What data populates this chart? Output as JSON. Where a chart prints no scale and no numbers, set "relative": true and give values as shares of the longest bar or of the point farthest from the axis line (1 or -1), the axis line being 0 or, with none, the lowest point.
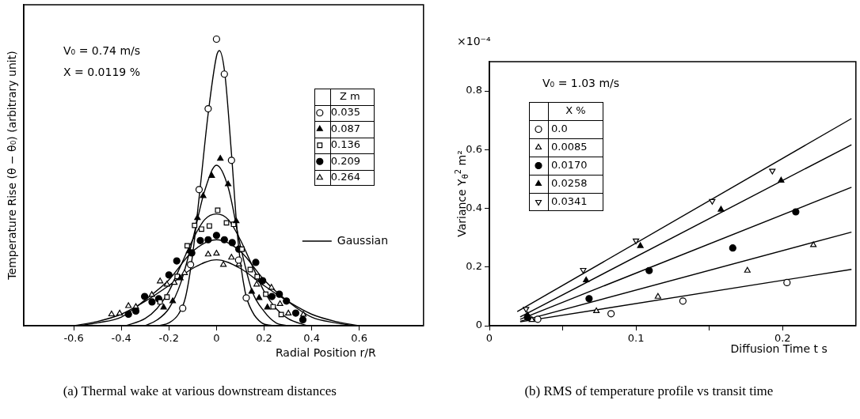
{
  "chart_data": [
    {
      "type": "scatter",
      "title": "(a) Thermal wake at various downstream distances",
      "xlabel": "Radial Position r/R",
      "ylabel": "Temperature Rise (θ − θ₀) (arbitrary unit)",
      "legend_title": "Z m",
      "legend": "right",
      "relative": true,
      "xlim": [
        -0.81,
        0.87
      ],
      "xticks": [
        -0.6,
        -0.4,
        -0.2,
        0,
        0.2,
        0.4,
        0.6
      ],
      "annotations": [
        "V₀ = 0.74 m/s",
        "X = 0.0119 %"
      ],
      "series": [
        {
          "name": "0.035",
          "color": "#ffffff",
          "marker": "circle",
          "x": [
            0,
            0.033,
            -0.035,
            0.063,
            -0.073,
            -0.109,
            0.093,
            0.125,
            -0.142
          ],
          "values": [
            1.0,
            0.878,
            0.757,
            0.577,
            0.475,
            0.213,
            0.229,
            0.097,
            0.061
          ]
        },
        {
          "name": "0.087",
          "color": "#000000",
          "marker": "triangle",
          "x": [
            0.016,
            -0.02,
            0.049,
            -0.056,
            -0.08,
            0.083,
            -0.115,
            -0.152,
            -0.184,
            -0.222,
            0.148,
            0.179,
            0.214
          ],
          "values": [
            0.583,
            0.523,
            0.494,
            0.453,
            0.376,
            0.365,
            0.26,
            0.166,
            0.086,
            0.064,
            0.119,
            0.097,
            0.064
          ]
        },
        {
          "name": "0.136",
          "color": "#ffffff",
          "marker": "square",
          "x": [
            0.005,
            -0.092,
            -0.063,
            -0.03,
            0.042,
            0.072,
            -0.123,
            0.107,
            -0.165,
            0.142,
            0.171,
            -0.208,
            -0.237,
            0.207,
            0.238,
            0.272
          ],
          "values": [
            0.403,
            0.35,
            0.337,
            0.348,
            0.359,
            0.354,
            0.279,
            0.267,
            0.172,
            0.196,
            0.171,
            0.1,
            0.083,
            0.11,
            0.066,
            0.039
          ]
        },
        {
          "name": "0.209",
          "color": "#000000",
          "marker": "circle",
          "x": [
            0,
            -0.068,
            -0.035,
            0.033,
            0.066,
            0.094,
            -0.104,
            -0.167,
            0.165,
            -0.2,
            0.194,
            0.233,
            0.264,
            0.294,
            -0.302,
            -0.271,
            -0.243,
            -0.339,
            -0.37,
            0.333,
            0.363
          ],
          "values": [
            0.315,
            0.297,
            0.3,
            0.3,
            0.29,
            0.267,
            0.254,
            0.226,
            0.221,
            0.177,
            0.157,
            0.102,
            0.11,
            0.086,
            0.102,
            0.083,
            0.094,
            0.051,
            0.04,
            0.044,
            0.021
          ]
        },
        {
          "name": "0.264",
          "color": "#ffffff",
          "marker": "triangle",
          "x": [
            -0.035,
            0,
            0.063,
            0.029,
            -0.272,
            -0.237,
            -0.208,
            -0.177,
            -0.134,
            0.094,
            0.169,
            0.231,
            0.267,
            0.302,
            0.365,
            -0.37,
            -0.339,
            -0.407,
            -0.441
          ],
          "values": [
            0.249,
            0.252,
            0.238,
            0.213,
            0.108,
            0.155,
            0.144,
            0.15,
            0.184,
            0.214,
            0.144,
            0.133,
            0.076,
            0.043,
            0.039,
            0.069,
            0.066,
            0.043,
            0.04
          ]
        },
        {
          "type": "line",
          "name": "Gaussian",
          "color": "#000000",
          "marker": "none",
          "x": [
            -0.24,
            -0.2,
            -0.16,
            -0.13,
            -0.1,
            -0.07,
            -0.035,
            0,
            0.012,
            0.035,
            0.063,
            0.09,
            0.12,
            0.15,
            0.19,
            0.235
          ],
          "values": [
            0,
            0.01,
            0.04,
            0.1,
            0.25,
            0.47,
            0.74,
            0.94,
            0.96,
            0.88,
            0.6,
            0.3,
            0.12,
            0.05,
            0.01,
            0
          ]
        },
        {
          "type": "line",
          "color": "#000000",
          "marker": "none",
          "x": [
            -0.3,
            -0.25,
            -0.2,
            -0.15,
            -0.1,
            -0.05,
            0,
            0.05,
            0.1,
            0.15,
            0.2,
            0.25,
            0.3
          ],
          "values": [
            0,
            0.02,
            0.06,
            0.15,
            0.3,
            0.47,
            0.56,
            0.48,
            0.28,
            0.12,
            0.05,
            0.01,
            0
          ]
        },
        {
          "type": "line",
          "color": "#000000",
          "marker": "none",
          "x": [
            -0.38,
            -0.3,
            -0.25,
            -0.2,
            -0.15,
            -0.1,
            -0.05,
            0,
            0.05,
            0.1,
            0.15,
            0.2,
            0.25,
            0.3,
            0.38
          ],
          "values": [
            0,
            0.025,
            0.06,
            0.12,
            0.21,
            0.3,
            0.37,
            0.39,
            0.37,
            0.3,
            0.21,
            0.12,
            0.06,
            0.025,
            0
          ]
        },
        {
          "type": "line",
          "color": "#000000",
          "marker": "none",
          "x": [
            -0.58,
            -0.5,
            -0.4,
            -0.3,
            -0.2,
            -0.1,
            0,
            0.1,
            0.2,
            0.3,
            0.4,
            0.5,
            0.58
          ],
          "values": [
            0,
            0.01,
            0.03,
            0.09,
            0.16,
            0.26,
            0.3,
            0.26,
            0.16,
            0.085,
            0.03,
            0.01,
            0
          ]
        },
        {
          "type": "line",
          "color": "#000000",
          "marker": "none",
          "x": [
            -0.6,
            -0.5,
            -0.4,
            -0.3,
            -0.2,
            -0.1,
            0,
            0.1,
            0.2,
            0.3,
            0.4,
            0.5,
            0.6
          ],
          "values": [
            0,
            0.015,
            0.04,
            0.085,
            0.14,
            0.2,
            0.23,
            0.2,
            0.14,
            0.085,
            0.04,
            0.015,
            0
          ]
        }
      ]
    },
    {
      "type": "scatter",
      "title": "(b) RMS of temperature profile vs transit time",
      "xlabel": "Diffusion Time t s",
      "ylabel": "Variance Y$_{θ}$$^{2}$ m²",
      "legend_title": "X %",
      "legend": "top left",
      "xlim": [
        0,
        0.25
      ],
      "xticks": [
        0,
        {
          "value": 0.05,
          "label": null
        },
        0.1,
        {
          "value": 0.15,
          "label": null
        },
        0.2
      ],
      "ylim": [
        0,
        0.9
      ],
      "yticks": [
        0,
        0.2,
        0.4,
        0.6,
        0.8
      ],
      "annotations": [
        "V₀ = 1.03 m/s",
        "×10⁻⁴"
      ],
      "series": [
        {
          "name": "0.0",
          "color": "#ffffff",
          "marker": "circle",
          "x": [
            0.033,
            0.083,
            0.132,
            0.203
          ],
          "values": [
            0.022,
            0.041,
            0.084,
            0.147
          ]
        },
        {
          "name": "0.0085",
          "color": "#ffffff",
          "marker": "triangle",
          "x": [
            0.029,
            0.073,
            0.115,
            0.176,
            0.221
          ],
          "values": [
            0.02,
            0.05,
            0.099,
            0.188,
            0.275
          ]
        },
        {
          "name": "0.0170",
          "color": "#000000",
          "marker": "circle",
          "x": [
            0.026,
            0.068,
            0.109,
            0.166,
            0.209
          ],
          "values": [
            0.029,
            0.092,
            0.188,
            0.265,
            0.388
          ]
        },
        {
          "name": "0.0258",
          "color": "#000000",
          "marker": "triangle",
          "x": [
            0.026,
            0.066,
            0.103,
            0.158,
            0.199
          ],
          "values": [
            0.036,
            0.155,
            0.272,
            0.396,
            0.495
          ]
        },
        {
          "name": "0.0341",
          "color": "#ffffff",
          "marker": "triangle-down",
          "x": [
            0.025,
            0.064,
            0.1,
            0.152,
            0.193
          ],
          "values": [
            0.057,
            0.19,
            0.29,
            0.425,
            0.528
          ]
        },
        {
          "type": "line",
          "color": "#000000",
          "marker": "none",
          "x": [
            0.021,
            0.247
          ],
          "values": [
            0.013,
            0.192
          ]
        },
        {
          "type": "line",
          "color": "#000000",
          "marker": "none",
          "x": [
            0.021,
            0.247
          ],
          "values": [
            0.015,
            0.319
          ]
        },
        {
          "type": "line",
          "color": "#000000",
          "marker": "none",
          "x": [
            0.021,
            0.247
          ],
          "values": [
            0.022,
            0.472
          ]
        },
        {
          "type": "line",
          "color": "#000000",
          "marker": "none",
          "x": [
            0.021,
            0.247
          ],
          "values": [
            0.03,
            0.617
          ]
        },
        {
          "type": "line",
          "color": "#000000",
          "marker": "none",
          "x": [
            0.019,
            0.247
          ],
          "values": [
            0.048,
            0.706
          ]
        }
      ]
    }
  ]
}
